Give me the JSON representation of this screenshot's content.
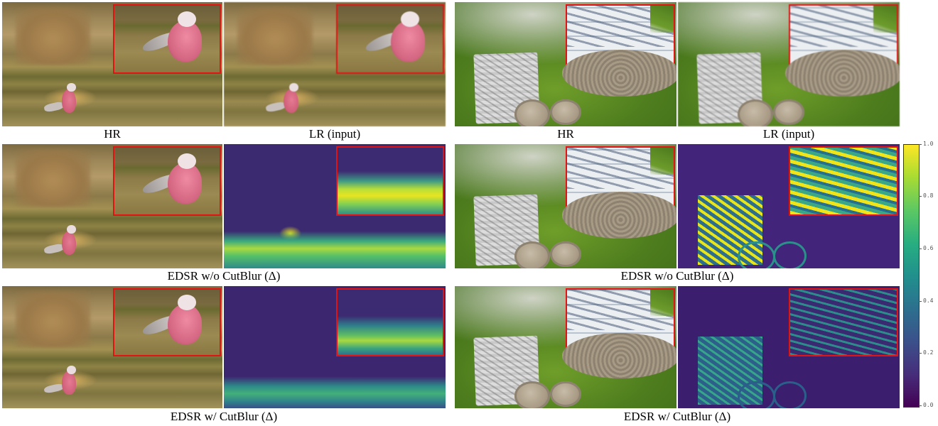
{
  "captions": {
    "left_row1_hr": "HR",
    "left_row1_lr": "LR (input)",
    "right_row1_hr": "HR",
    "right_row1_lr": "LR (input)",
    "left_row2": "EDSR w/o CutBlur (Δ)",
    "right_row2": "EDSR w/o CutBlur (Δ)",
    "left_row3": "EDSR w/ CutBlur (Δ)",
    "right_row3": "EDSR w/ CutBlur (Δ)"
  },
  "colorbar": {
    "ticks": [
      "1.0",
      "0.8",
      "0.6",
      "0.4",
      "0.2",
      "0.0"
    ],
    "colormap": [
      "#440154",
      "#3b518b",
      "#21908d",
      "#5cc863",
      "#fde725"
    ]
  },
  "colors": {
    "inset_border": "#e11414"
  }
}
